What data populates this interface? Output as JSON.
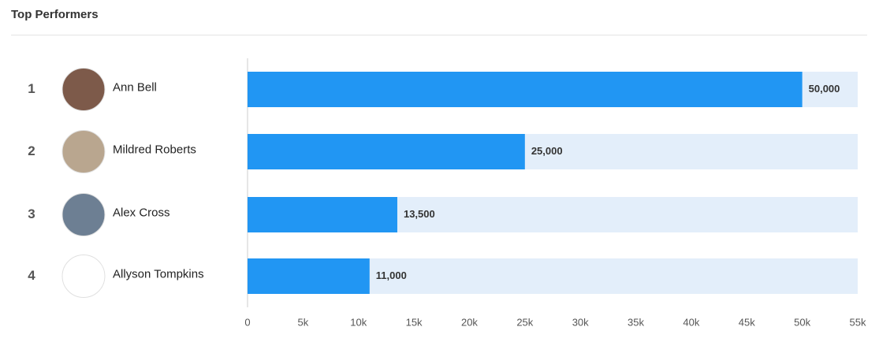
{
  "chart_data": {
    "type": "bar",
    "orientation": "horizontal",
    "title": "Top Performers",
    "ranks": [
      1,
      2,
      3,
      4
    ],
    "categories": [
      "Ann Bell",
      "Mildred Roberts",
      "Alex Cross",
      "Allyson Tompkins"
    ],
    "values": [
      50000,
      25000,
      13500,
      11000
    ],
    "value_labels": [
      "50,000",
      "25,000",
      "13,500",
      "11,000"
    ],
    "color": "#2196f3",
    "track_color": "#e3eefa",
    "xlim": [
      0,
      55000
    ],
    "xticks": [
      0,
      {
        "value": 5000,
        "label": "5k"
      },
      {
        "value": 10000,
        "label": "10k"
      },
      {
        "value": 15000,
        "label": "15k"
      },
      {
        "value": 20000,
        "label": "20k"
      },
      {
        "value": 25000,
        "label": "25k"
      },
      {
        "value": 30000,
        "label": "30k"
      },
      {
        "value": 35000,
        "label": "35k"
      },
      {
        "value": 40000,
        "label": "40k"
      },
      {
        "value": 45000,
        "label": "45k"
      },
      {
        "value": 50000,
        "label": "50k"
      },
      {
        "value": 55000,
        "label": "55k"
      }
    ]
  }
}
